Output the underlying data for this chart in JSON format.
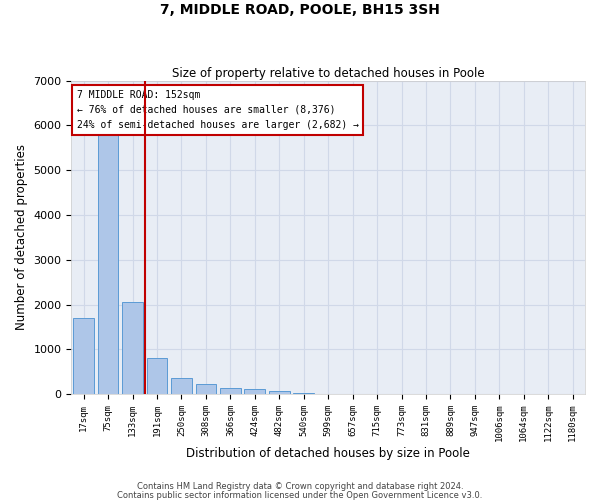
{
  "title_line1": "7, MIDDLE ROAD, POOLE, BH15 3SH",
  "title_line2": "Size of property relative to detached houses in Poole",
  "xlabel": "Distribution of detached houses by size in Poole",
  "ylabel": "Number of detached properties",
  "categories": [
    "17sqm",
    "75sqm",
    "133sqm",
    "191sqm",
    "250sqm",
    "308sqm",
    "366sqm",
    "424sqm",
    "482sqm",
    "540sqm",
    "599sqm",
    "657sqm",
    "715sqm",
    "773sqm",
    "831sqm",
    "889sqm",
    "947sqm",
    "1006sqm",
    "1064sqm",
    "1122sqm",
    "1180sqm"
  ],
  "bar_heights": [
    1700,
    5900,
    2050,
    800,
    350,
    220,
    130,
    110,
    80,
    30,
    0,
    0,
    0,
    0,
    0,
    0,
    0,
    0,
    0,
    0,
    0
  ],
  "bar_color": "#aec6e8",
  "bar_edge_color": "#5b9bd5",
  "marker_color": "#c00000",
  "ylim": [
    0,
    7000
  ],
  "yticks": [
    0,
    1000,
    2000,
    3000,
    4000,
    5000,
    6000,
    7000
  ],
  "annotation_text": "7 MIDDLE ROAD: 152sqm\n← 76% of detached houses are smaller (8,376)\n24% of semi-detached houses are larger (2,682) →",
  "annotation_box_color": "#ffffff",
  "annotation_box_edge": "#c00000",
  "footnote1": "Contains HM Land Registry data © Crown copyright and database right 2024.",
  "footnote2": "Contains public sector information licensed under the Open Government Licence v3.0.",
  "grid_color": "#d0d8e8",
  "background_color": "#e8edf5"
}
